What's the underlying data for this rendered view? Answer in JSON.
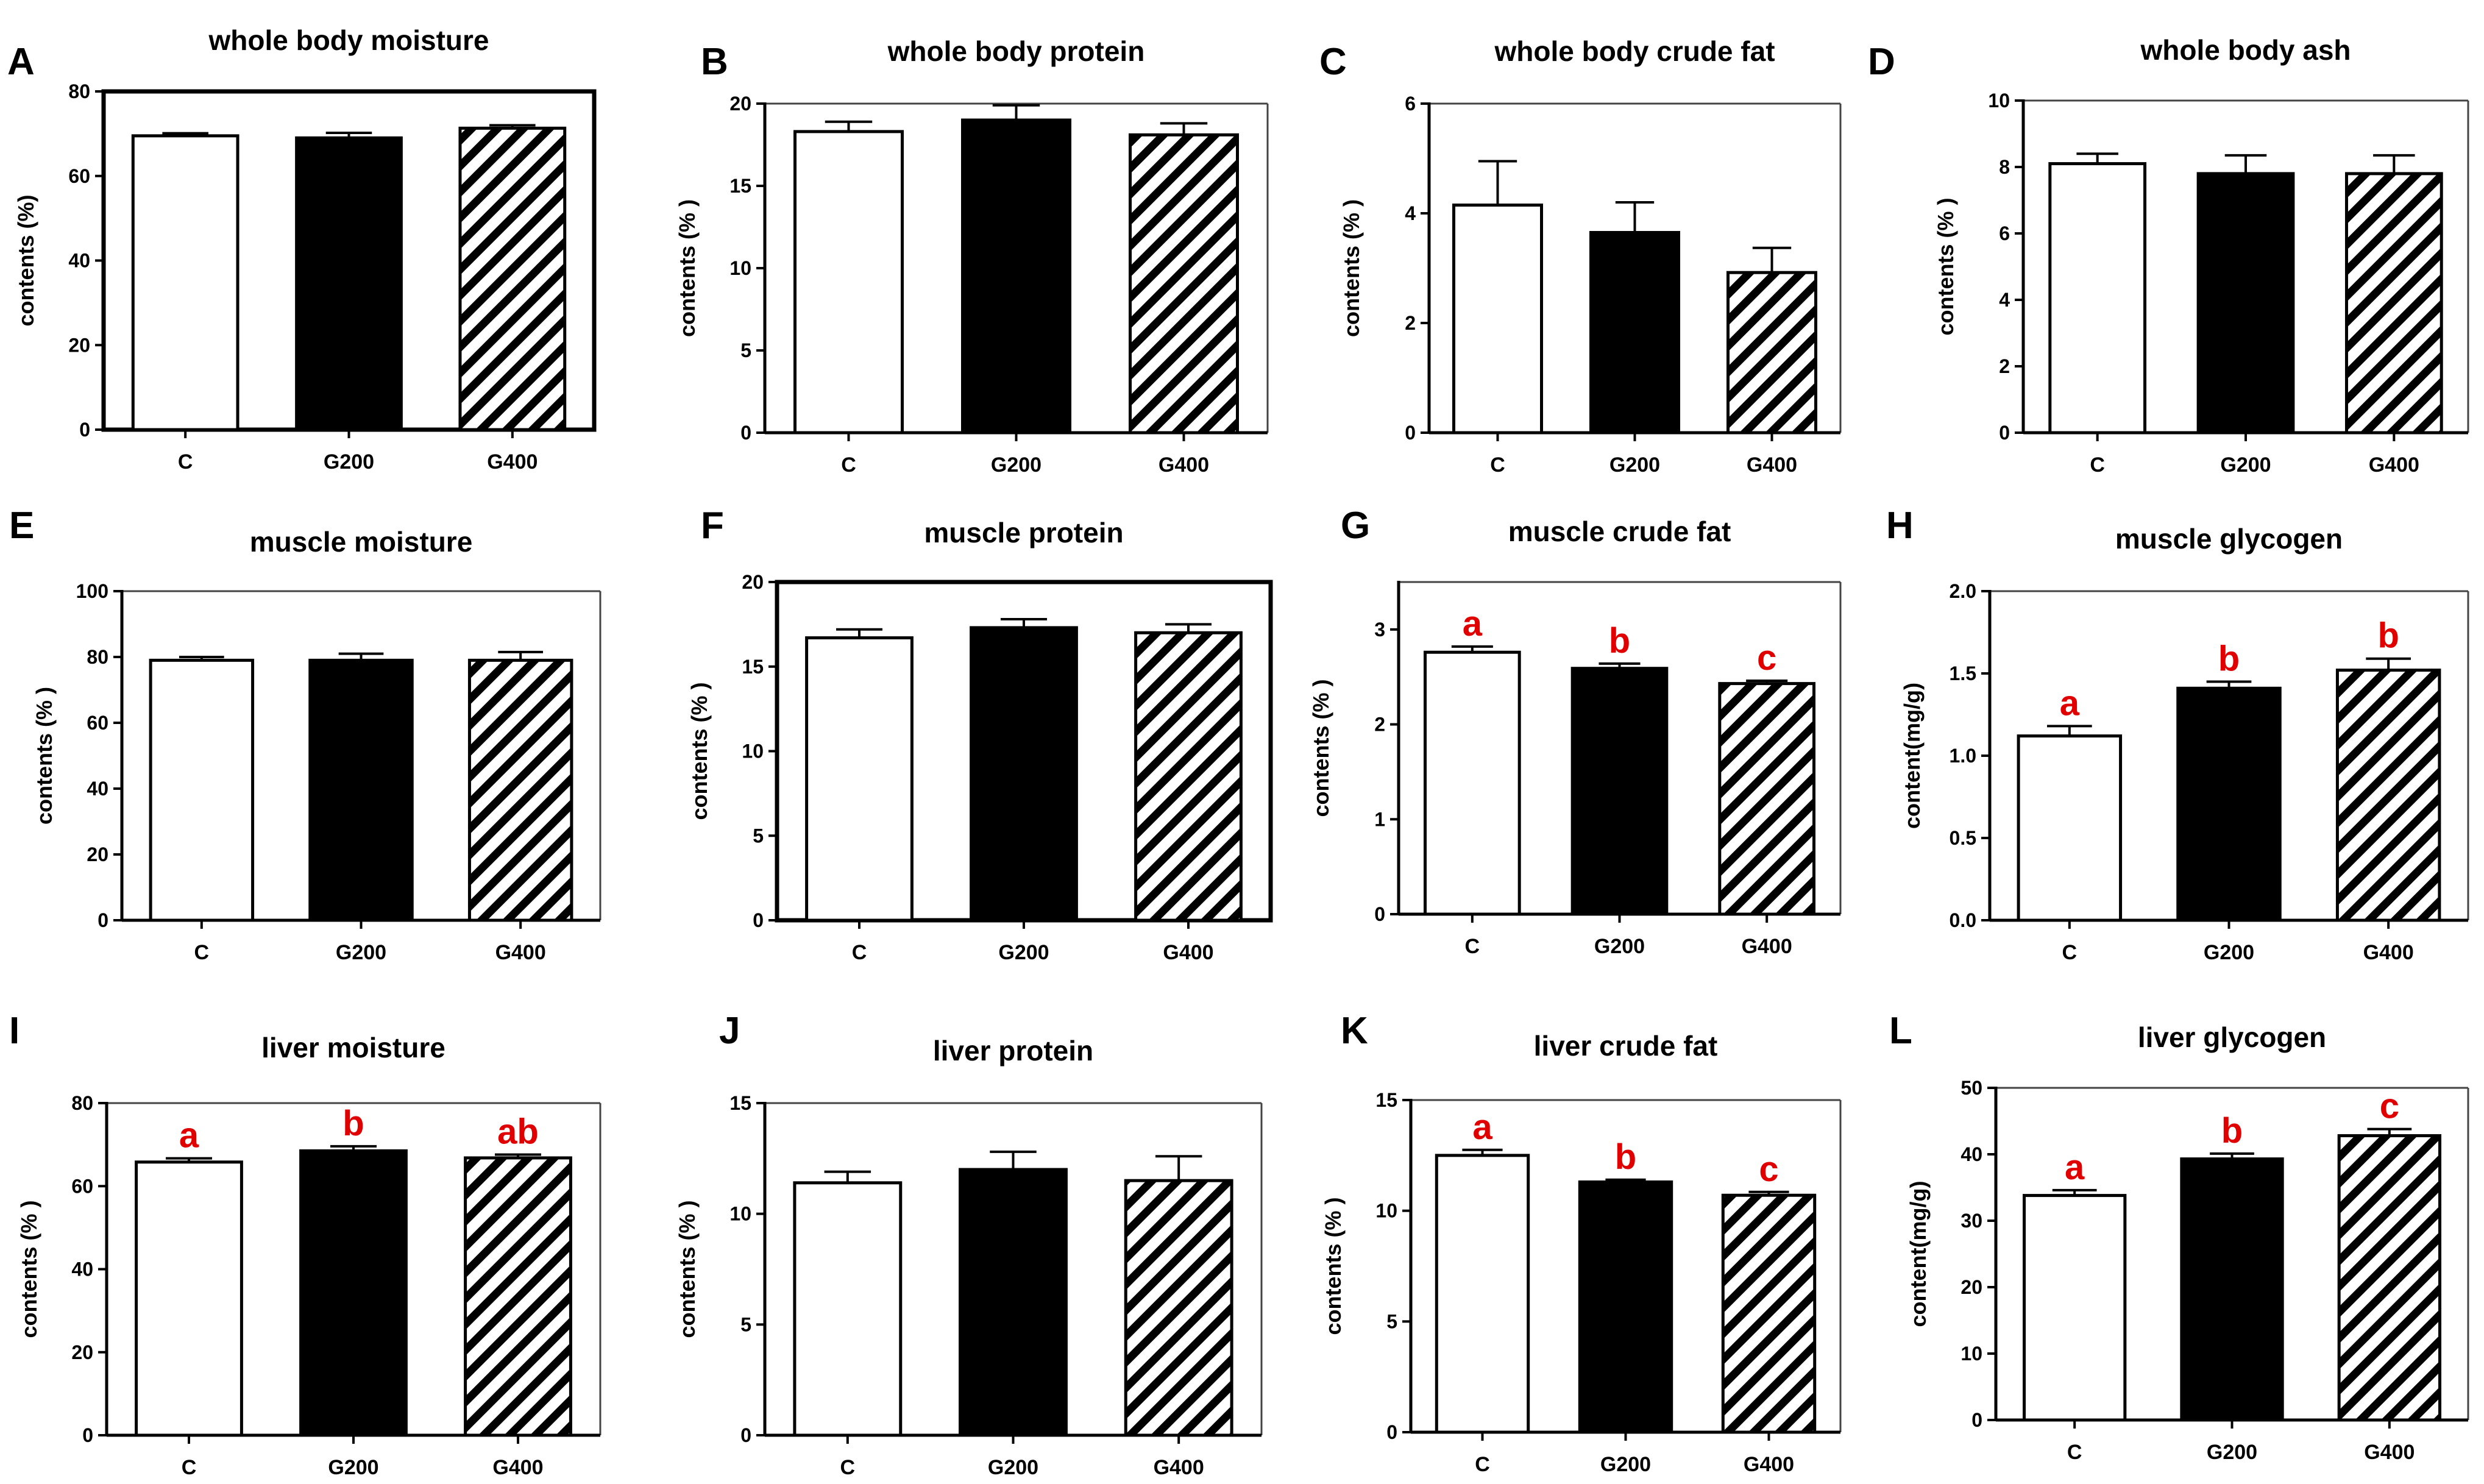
{
  "chart_data": [
    {
      "panel": "A",
      "type": "bar",
      "title": "whole body moisture",
      "ylabel": "contents (%)",
      "ylim": [
        0,
        80
      ],
      "yticks": [
        "0",
        "20",
        "40",
        "60",
        "80"
      ],
      "categories": [
        "C",
        "G200",
        "G400"
      ],
      "values": [
        69.5,
        69.0,
        71.3
      ],
      "errors": [
        0.6,
        1.2,
        0.7
      ],
      "letters": [
        "",
        "",
        ""
      ],
      "frame": "full"
    },
    {
      "panel": "B",
      "type": "bar",
      "title": "whole body protein",
      "ylabel": "contents (% )",
      "ylim": [
        0,
        20
      ],
      "yticks": [
        "0",
        "5",
        "10",
        "15",
        "20"
      ],
      "categories": [
        "C",
        "G200",
        "G400"
      ],
      "values": [
        18.3,
        19.0,
        18.1
      ],
      "errors": [
        0.6,
        0.9,
        0.7
      ],
      "letters": [
        "",
        "",
        ""
      ],
      "frame": "open"
    },
    {
      "panel": "C",
      "type": "bar",
      "title": "whole body crude fat",
      "ylabel": "contents (% )",
      "ylim": [
        0,
        6
      ],
      "yticks": [
        "0",
        "2",
        "4",
        "6"
      ],
      "categories": [
        "C",
        "G200",
        "G400"
      ],
      "values": [
        4.15,
        3.65,
        2.92
      ],
      "errors": [
        0.8,
        0.55,
        0.45
      ],
      "letters": [
        "",
        "",
        ""
      ],
      "frame": "open"
    },
    {
      "panel": "D",
      "type": "bar",
      "title": "whole body ash",
      "ylabel": "contents (% )",
      "ylim": [
        0,
        10
      ],
      "yticks": [
        "0",
        "2",
        "4",
        "6",
        "8",
        "10"
      ],
      "categories": [
        "C",
        "G200",
        "G400"
      ],
      "values": [
        8.1,
        7.8,
        7.8
      ],
      "errors": [
        0.3,
        0.55,
        0.55
      ],
      "letters": [
        "",
        "",
        ""
      ],
      "frame": "open"
    },
    {
      "panel": "E",
      "type": "bar",
      "title": "muscle moisture",
      "ylabel": "contents (% )",
      "ylim": [
        0,
        100
      ],
      "yticks": [
        "0",
        "20",
        "40",
        "60",
        "80",
        "100"
      ],
      "categories": [
        "C",
        "G200",
        "G400"
      ],
      "values": [
        79.0,
        79.0,
        79.0
      ],
      "errors": [
        1.0,
        2.0,
        2.5
      ],
      "letters": [
        "",
        "",
        ""
      ],
      "frame": "open"
    },
    {
      "panel": "F",
      "type": "bar",
      "title": "muscle protein",
      "ylabel": "contents (% )",
      "ylim": [
        0,
        20
      ],
      "yticks": [
        "0",
        "5",
        "10",
        "15",
        "20"
      ],
      "categories": [
        "C",
        "G200",
        "G400"
      ],
      "values": [
        16.7,
        17.3,
        17.0
      ],
      "errors": [
        0.5,
        0.5,
        0.5
      ],
      "letters": [
        "",
        "",
        ""
      ],
      "frame": "full"
    },
    {
      "panel": "G",
      "type": "bar",
      "title": "muscle crude fat",
      "ylabel": "contents (% )",
      "ylim": [
        0,
        3.5
      ],
      "yticks": [
        "0",
        "1",
        "2",
        "3"
      ],
      "categories": [
        "C",
        "G200",
        "G400"
      ],
      "values": [
        2.76,
        2.59,
        2.43
      ],
      "errors": [
        0.06,
        0.05,
        0.03
      ],
      "letters": [
        "a",
        "b",
        "c"
      ],
      "frame": "open"
    },
    {
      "panel": "H",
      "type": "bar",
      "title": "muscle glycogen",
      "ylabel": "content(mg/g)",
      "ylim": [
        0,
        2.0
      ],
      "yticks": [
        "0.0",
        "0.5",
        "1.0",
        "1.5",
        "2.0"
      ],
      "categories": [
        "C",
        "G200",
        "G400"
      ],
      "values": [
        1.12,
        1.41,
        1.52
      ],
      "errors": [
        0.06,
        0.04,
        0.07
      ],
      "letters": [
        "a",
        "b",
        "b"
      ],
      "frame": "open"
    },
    {
      "panel": "I",
      "type": "bar",
      "title": "liver moisture",
      "ylabel": "contents (% )",
      "ylim": [
        0,
        80
      ],
      "yticks": [
        "0",
        "20",
        "40",
        "60",
        "80"
      ],
      "categories": [
        "C",
        "G200",
        "G400"
      ],
      "values": [
        65.8,
        68.5,
        66.8
      ],
      "errors": [
        0.9,
        1.1,
        0.8
      ],
      "letters": [
        "a",
        "b",
        "ab"
      ],
      "frame": "open"
    },
    {
      "panel": "J",
      "type": "bar",
      "title": "liver protein",
      "ylabel": "contents (% )",
      "ylim": [
        0,
        15
      ],
      "yticks": [
        "0",
        "5",
        "10",
        "15"
      ],
      "categories": [
        "C",
        "G200",
        "G400"
      ],
      "values": [
        11.4,
        12.0,
        11.5
      ],
      "errors": [
        0.5,
        0.8,
        1.1
      ],
      "letters": [
        "",
        "",
        ""
      ],
      "frame": "open"
    },
    {
      "panel": "K",
      "type": "bar",
      "title": "liver crude fat",
      "ylabel": "contents (% )",
      "ylim": [
        0,
        15
      ],
      "yticks": [
        "0",
        "5",
        "10",
        "15"
      ],
      "categories": [
        "C",
        "G200",
        "G400"
      ],
      "values": [
        12.5,
        11.3,
        10.7
      ],
      "errors": [
        0.25,
        0.1,
        0.15
      ],
      "letters": [
        "a",
        "b",
        "c"
      ],
      "frame": "open"
    },
    {
      "panel": "L",
      "type": "bar",
      "title": "liver glycogen",
      "ylabel": "content(mg/g)",
      "ylim": [
        0,
        50
      ],
      "yticks": [
        "0",
        "10",
        "20",
        "30",
        "40",
        "50"
      ],
      "categories": [
        "C",
        "G200",
        "G400"
      ],
      "values": [
        33.8,
        39.3,
        42.8
      ],
      "errors": [
        0.8,
        0.8,
        1.0
      ],
      "letters": [
        "a",
        "b",
        "c"
      ],
      "frame": "open"
    }
  ]
}
